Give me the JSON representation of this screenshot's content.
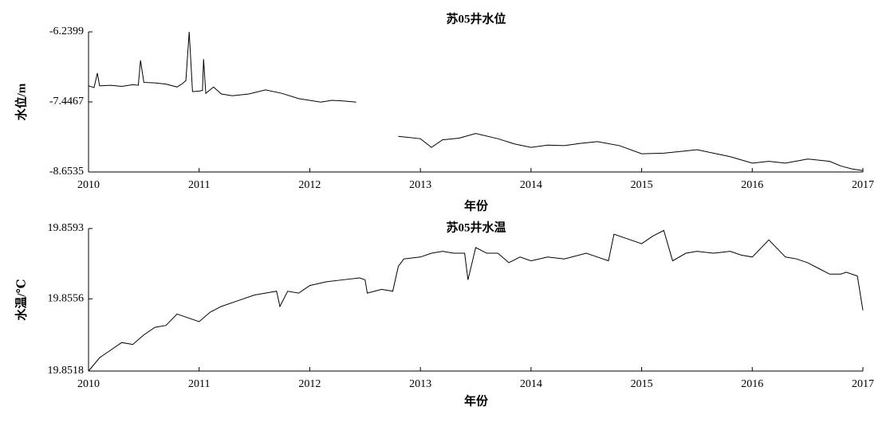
{
  "chart_data": [
    {
      "type": "line",
      "title": "苏05井水位",
      "xlabel": "年份",
      "ylabel": "水位/m",
      "color": "#000000",
      "xlim": [
        2010,
        2017
      ],
      "xticks": [
        2010,
        2011,
        2012,
        2013,
        2014,
        2015,
        2016,
        2017
      ],
      "ylim": [
        -8.6535,
        -6.2399
      ],
      "yticks": [
        -8.6535,
        -7.4467,
        -6.2399
      ],
      "x": [
        2010.0,
        2010.05,
        2010.08,
        2010.1,
        2010.2,
        2010.3,
        2010.4,
        2010.45,
        2010.47,
        2010.5,
        2010.6,
        2010.7,
        2010.8,
        2010.85,
        2010.88,
        2010.91,
        2010.94,
        2011.0,
        2011.03,
        2011.04,
        2011.06,
        2011.13,
        2011.2,
        2011.3,
        2011.45,
        2011.6,
        2011.75,
        2011.9,
        2012.1,
        2012.2,
        2012.3,
        2012.42,
        2012.6,
        2012.8,
        2013.0,
        2013.1,
        2013.2,
        2013.35,
        2013.5,
        2013.7,
        2013.85,
        2014.0,
        2014.15,
        2014.3,
        2014.45,
        2014.6,
        2014.8,
        2015.0,
        2015.2,
        2015.35,
        2015.5,
        2015.65,
        2015.8,
        2016.0,
        2016.15,
        2016.3,
        2016.5,
        2016.7,
        2016.8,
        2016.9,
        2017.0
      ],
      "values": [
        -7.17,
        -7.2,
        -6.95,
        -7.17,
        -7.16,
        -7.18,
        -7.15,
        -7.16,
        -6.73,
        -7.11,
        -7.12,
        -7.14,
        -7.19,
        -7.13,
        -7.08,
        -6.24,
        -7.27,
        -7.26,
        -7.25,
        -6.71,
        -7.3,
        -7.19,
        -7.31,
        -7.34,
        -7.31,
        -7.24,
        -7.3,
        -7.39,
        -7.45,
        -7.42,
        -7.43,
        -7.45,
        null,
        -8.04,
        -8.08,
        -8.23,
        -8.1,
        -8.07,
        -7.99,
        -8.08,
        -8.17,
        -8.23,
        -8.19,
        -8.2,
        -8.16,
        -8.13,
        -8.2,
        -8.34,
        -8.33,
        -8.3,
        -8.27,
        -8.33,
        -8.39,
        -8.5,
        -8.47,
        -8.5,
        -8.43,
        -8.47,
        -8.55,
        -8.6,
        -8.63
      ]
    },
    {
      "type": "line",
      "title": "苏05井水温",
      "xlabel": "年份",
      "ylabel": "水温/℃",
      "color": "#000000",
      "xlim": [
        2010,
        2017
      ],
      "xticks": [
        2010,
        2011,
        2012,
        2013,
        2014,
        2015,
        2016,
        2017
      ],
      "ylim": [
        19.8518,
        19.8593
      ],
      "yticks": [
        19.8518,
        19.8556,
        19.8593
      ],
      "x": [
        2010.0,
        2010.1,
        2010.2,
        2010.3,
        2010.4,
        2010.5,
        2010.6,
        2010.7,
        2010.8,
        2010.9,
        2011.0,
        2011.1,
        2011.2,
        2011.35,
        2011.5,
        2011.6,
        2011.7,
        2011.73,
        2011.8,
        2011.9,
        2012.0,
        2012.15,
        2012.3,
        2012.45,
        2012.5,
        2012.52,
        2012.65,
        2012.75,
        2012.8,
        2012.85,
        2013.0,
        2013.1,
        2013.2,
        2013.3,
        2013.4,
        2013.43,
        2013.5,
        2013.6,
        2013.7,
        2013.8,
        2013.9,
        2014.0,
        2014.15,
        2014.3,
        2014.5,
        2014.6,
        2014.7,
        2014.75,
        2014.9,
        2015.0,
        2015.1,
        2015.2,
        2015.28,
        2015.4,
        2015.5,
        2015.65,
        2015.8,
        2015.9,
        2016.0,
        2016.15,
        2016.3,
        2016.4,
        2016.5,
        2016.6,
        2016.7,
        2016.8,
        2016.85,
        2016.95,
        2017.0
      ],
      "values": [
        19.8518,
        19.8525,
        19.8529,
        19.8533,
        19.8532,
        19.8537,
        19.8541,
        19.8542,
        19.8548,
        19.8546,
        19.8544,
        19.8549,
        19.8552,
        19.8555,
        19.8558,
        19.8559,
        19.856,
        19.8552,
        19.856,
        19.8559,
        19.8563,
        19.8565,
        19.8566,
        19.8567,
        19.8566,
        19.8559,
        19.8561,
        19.856,
        19.8573,
        19.8577,
        19.8578,
        19.858,
        19.8581,
        19.858,
        19.858,
        19.8566,
        19.8583,
        19.858,
        19.858,
        19.8575,
        19.8578,
        19.8576,
        19.8578,
        19.8577,
        19.858,
        19.8578,
        19.8576,
        19.859,
        19.8587,
        19.8585,
        19.8589,
        19.8592,
        19.8576,
        19.858,
        19.8581,
        19.858,
        19.8581,
        19.8579,
        19.8578,
        19.8587,
        19.8578,
        19.8577,
        19.8575,
        19.8572,
        19.8569,
        19.8569,
        19.857,
        19.8568,
        19.855
      ]
    }
  ]
}
